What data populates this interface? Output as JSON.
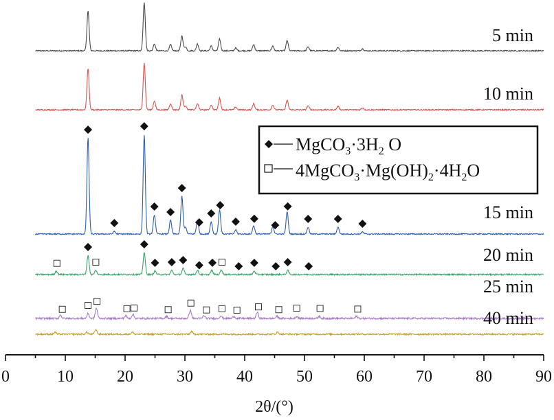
{
  "chart_data": {
    "type": "line",
    "xlabel": "2θ/(°)",
    "xlim": [
      0,
      90
    ],
    "xticks": [
      0,
      10,
      20,
      30,
      40,
      50,
      60,
      70,
      80,
      90
    ],
    "grid": false,
    "legend_position": "top-right",
    "legend": [
      {
        "marker": "filled-diamond",
        "label": "MgCO₃·3H₂O",
        "label_main": "MgCO",
        "label_sub1": "3",
        "label_mid": "·3H",
        "label_sub2": "2",
        "label_end": " O"
      },
      {
        "marker": "open-square",
        "label": "4MgCO₃·Mg(OH)₂·4H₂O",
        "label_main": "4MgCO",
        "label_sub1": "3",
        "label_mid": "·Mg(OH)",
        "label_sub2": "2",
        "label_end": "·4H₂O",
        "label_end_a": "·4H",
        "label_sub3": "2",
        "label_end_b": "O"
      }
    ],
    "series": [
      {
        "name": "5 min",
        "color": "#4a4a4a",
        "noise": 1.0,
        "peaks": [
          [
            13.8,
            58
          ],
          [
            23.2,
            70
          ],
          [
            24.9,
            10
          ],
          [
            27.6,
            9
          ],
          [
            29.5,
            22
          ],
          [
            30.1,
            6
          ],
          [
            32.1,
            10
          ],
          [
            34.4,
            7
          ],
          [
            35.8,
            17
          ],
          [
            38.5,
            4
          ],
          [
            41.5,
            9
          ],
          [
            44.7,
            7
          ],
          [
            47.1,
            15
          ],
          [
            50.6,
            6
          ],
          [
            55.6,
            5
          ],
          [
            59.7,
            3
          ]
        ]
      },
      {
        "name": "10 min",
        "color": "#d9534f",
        "noise": 1.0,
        "peaks": [
          [
            13.8,
            60
          ],
          [
            23.2,
            68
          ],
          [
            24.9,
            13
          ],
          [
            27.6,
            9
          ],
          [
            29.5,
            22
          ],
          [
            30.1,
            6
          ],
          [
            32.1,
            9
          ],
          [
            34.4,
            7
          ],
          [
            35.8,
            17
          ],
          [
            38.5,
            4
          ],
          [
            41.5,
            9
          ],
          [
            44.7,
            7
          ],
          [
            47.1,
            14
          ],
          [
            50.6,
            6
          ],
          [
            55.6,
            5
          ],
          [
            59.7,
            3
          ]
        ]
      },
      {
        "name": "15 min",
        "color": "#2e5fb0",
        "noise": 1.0,
        "peaks": [
          [
            13.8,
            140
          ],
          [
            18.2,
            4
          ],
          [
            23.2,
            145
          ],
          [
            24.9,
            28
          ],
          [
            27.6,
            20
          ],
          [
            29.5,
            55
          ],
          [
            30.1,
            10
          ],
          [
            32.1,
            20
          ],
          [
            34.4,
            18
          ],
          [
            35.8,
            35
          ],
          [
            38.5,
            6
          ],
          [
            41.5,
            12
          ],
          [
            44.7,
            11
          ],
          [
            47.1,
            33
          ],
          [
            50.6,
            10
          ],
          [
            55.6,
            10
          ],
          [
            59.7,
            3
          ]
        ]
      },
      {
        "name": "20 min",
        "color": "#3aa36b",
        "noise": 1.3,
        "peaks": [
          [
            8.5,
            5
          ],
          [
            13.8,
            28
          ],
          [
            15.1,
            6
          ],
          [
            23.2,
            32
          ],
          [
            25.0,
            5
          ],
          [
            27.8,
            6
          ],
          [
            29.7,
            9
          ],
          [
            32.1,
            6
          ],
          [
            34.5,
            6
          ],
          [
            36.1,
            7
          ],
          [
            41.6,
            5
          ],
          [
            47.2,
            6
          ]
        ]
      },
      {
        "name": "25 min",
        "color": "#a77bc9",
        "noise": 1.6,
        "peaks": [
          [
            9.2,
            5
          ],
          [
            13.8,
            7
          ],
          [
            15.2,
            15
          ],
          [
            20.1,
            4
          ],
          [
            21.3,
            6
          ],
          [
            26.9,
            3
          ],
          [
            30.9,
            12
          ],
          [
            33.2,
            4
          ],
          [
            36.0,
            4
          ],
          [
            38.2,
            3
          ],
          [
            42.1,
            9
          ],
          [
            45.4,
            3
          ],
          [
            48.7,
            3
          ],
          [
            52.5,
            3
          ],
          [
            58.7,
            3
          ]
        ]
      },
      {
        "name": "40 min",
        "color": "#c9a227",
        "noise": 1.4,
        "peaks": [
          [
            8.3,
            3
          ],
          [
            13.6,
            3
          ],
          [
            15.1,
            7
          ],
          [
            21.2,
            3
          ],
          [
            31.1,
            4
          ],
          [
            45.5,
            3
          ]
        ]
      }
    ],
    "markers": [
      {
        "series": "15 min",
        "symbol": "filled-diamond",
        "x": [
          13.8,
          18.2,
          23.2,
          24.9,
          27.6,
          29.5,
          32.4,
          34.4,
          35.9,
          38.5,
          41.6,
          45.1,
          47.2,
          50.6,
          55.6,
          59.7
        ]
      },
      {
        "series": "20 min",
        "symbol": "filled-diamond",
        "x": [
          13.8,
          23.2,
          25.0,
          27.8,
          29.7,
          32.4,
          34.6,
          39.0,
          41.6,
          45.2,
          47.2,
          50.7
        ]
      },
      {
        "series": "20 min",
        "symbol": "open-square",
        "x": [
          8.6,
          15.1,
          36.2
        ]
      },
      {
        "series": "25 min",
        "symbol": "open-square",
        "x": [
          9.5,
          13.8,
          15.3,
          20.3,
          21.5,
          27.2,
          31.0,
          33.6,
          36.2,
          38.7,
          42.3,
          45.7,
          48.7,
          52.6,
          58.9
        ]
      }
    ]
  }
}
